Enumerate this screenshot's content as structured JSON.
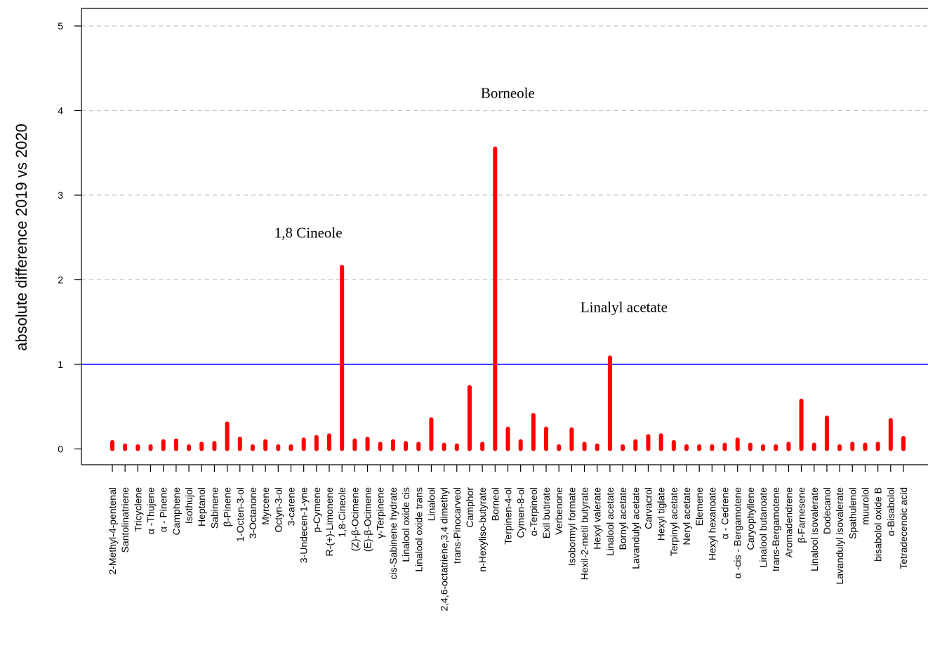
{
  "chart_data": {
    "type": "bar",
    "ylabel": "absolute difference 2019 vs 2020",
    "xlabel": "",
    "title": "",
    "ylim": [
      0,
      5
    ],
    "yticks": [
      0,
      1,
      2,
      3,
      4,
      5
    ],
    "grid": "horizontal-dashed",
    "threshold_line": 1,
    "colors": {
      "bar": "#ff0000",
      "threshold": "#0000ff",
      "grid": "#c8c8c8",
      "axis": "#000000"
    },
    "categories": [
      "2-Methyl-4-pentenal",
      "Santolinatriene",
      "Tricyclene",
      "α -Thujene",
      "α - Pinene",
      "Camphene",
      "Isothujol",
      "Heptanol",
      "Sabinene",
      "β-Pinene",
      "1-Octen-3-ol",
      "3-Octanone",
      "Myrcene",
      "Octyn-3-ol",
      "3-carene",
      "3-Undecen-1-yne",
      "p-Cymene",
      "R-(+)-Limonene",
      "1,8-Cineole",
      "(Z)-β-Ocimene",
      "(E)-β-Ocimene",
      "γ-Terpinene",
      "cis-Sabinene hydrate",
      "Linalool oxide cis",
      "Linalool oxide trans",
      "Linalool",
      "2,4,6-octatriene,3,4 dimethyl",
      "trans-Pinocarveol",
      "Camphor",
      "n-Hexyliso-butyrate",
      "Borneol",
      "Terpinen-4-ol",
      "Cymen-8-ol",
      "α-Terpineol",
      "Exil butirate",
      "Verbenone",
      "Isobormyl formate",
      "Hexil-2-metil butyrate",
      "Hexyl valerate",
      "Linalool acetate",
      "Bornyl acetate",
      "Lavandulyl acetate",
      "Carvacrol",
      "Hexyl tiglate",
      "Terpinyl acetate",
      "Neryl acetate",
      "Elemene",
      "Hexyl hexanoate",
      "α - Cedrene",
      "α -cis - Bergamotene",
      "Caryophyllene",
      "Linalool butanoate",
      "trans-Bergamotene",
      "Aromadendrene",
      "β-Farnesene",
      "Linalool isovalerate",
      "Dodecanol",
      "Lavandulyl isovalerate",
      "Spathulenol",
      "muurolol",
      "bisabolol oxide B",
      "α-Bisabolol",
      "Tetradecenoic acid"
    ],
    "values": [
      0.08,
      0.04,
      0.03,
      0.03,
      0.09,
      0.1,
      0.03,
      0.06,
      0.07,
      0.3,
      0.12,
      0.03,
      0.09,
      0.03,
      0.03,
      0.11,
      0.14,
      0.16,
      2.15,
      0.1,
      0.12,
      0.06,
      0.09,
      0.07,
      0.06,
      0.35,
      0.05,
      0.04,
      0.73,
      0.06,
      3.55,
      0.24,
      0.09,
      0.4,
      0.24,
      0.03,
      0.23,
      0.06,
      0.04,
      1.08,
      0.03,
      0.09,
      0.15,
      0.16,
      0.08,
      0.03,
      0.03,
      0.03,
      0.05,
      0.11,
      0.05,
      0.03,
      0.03,
      0.06,
      0.57,
      0.05,
      0.37,
      0.03,
      0.06,
      0.05,
      0.06,
      0.34,
      0.13
    ],
    "annotations": [
      {
        "text": "1,8 Cineole",
        "category": "1,8-Cineole",
        "y": 2.5
      },
      {
        "text": "Borneole",
        "category": "Borneol",
        "y": 4.15
      },
      {
        "text": "Linalyl acetate",
        "category": "Linalool acetate",
        "y": 1.62
      }
    ]
  }
}
